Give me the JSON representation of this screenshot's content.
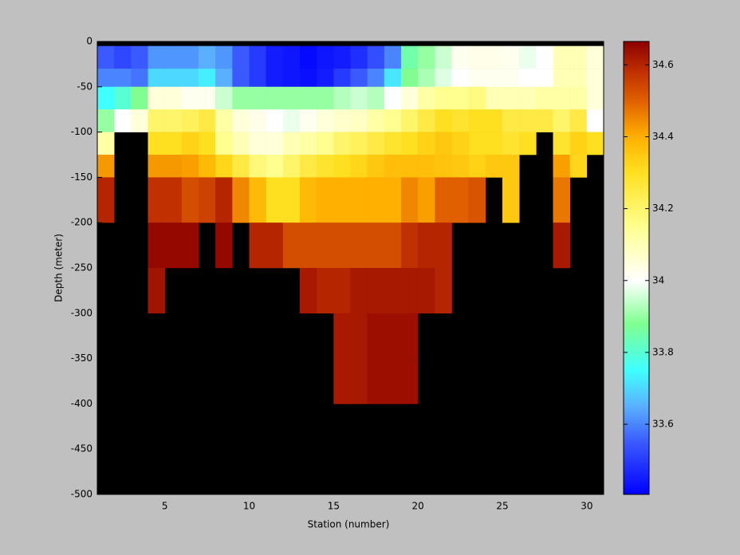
{
  "chart_data": {
    "type": "heatmap",
    "xlabel": "Station (number)",
    "ylabel": "Depth (meter)",
    "x_edges": [
      1,
      2,
      3,
      4,
      5,
      6,
      7,
      8,
      9,
      10,
      11,
      12,
      13,
      14,
      15,
      16,
      17,
      18,
      19,
      20,
      21,
      22,
      23,
      24,
      25,
      26,
      27,
      28,
      29,
      30,
      31
    ],
    "y_edges": [
      -5,
      -30,
      -50,
      -75,
      -100,
      -125,
      -150,
      -200,
      -250,
      -300,
      -350,
      -400
    ],
    "values": [
      [
        33.55,
        33.52,
        33.55,
        33.62,
        33.62,
        33.62,
        33.65,
        33.62,
        33.55,
        33.5,
        33.45,
        33.44,
        33.42,
        33.44,
        33.45,
        33.48,
        33.53,
        33.6,
        33.85,
        33.9,
        33.95,
        34.02,
        34.03,
        34.03,
        34.02,
        33.98,
        34.0,
        34.1,
        34.1,
        34.05
      ],
      [
        33.6,
        33.6,
        33.58,
        33.7,
        33.7,
        33.7,
        33.73,
        33.65,
        33.55,
        33.5,
        33.45,
        33.44,
        33.43,
        33.45,
        33.5,
        33.55,
        33.6,
        33.72,
        33.88,
        33.92,
        33.97,
        34.0,
        34.02,
        34.02,
        34.02,
        34.0,
        34.0,
        34.1,
        34.1,
        34.05
      ],
      [
        33.75,
        33.8,
        33.88,
        34.05,
        34.05,
        34.02,
        34.02,
        33.95,
        33.9,
        33.9,
        33.9,
        33.9,
        33.9,
        33.9,
        33.93,
        33.95,
        33.93,
        34.0,
        34.05,
        34.12,
        34.15,
        34.15,
        34.17,
        34.1,
        34.1,
        34.1,
        34.12,
        34.12,
        34.12,
        34.05
      ],
      [
        33.9,
        34.0,
        34.05,
        34.2,
        34.2,
        34.22,
        34.25,
        34.12,
        34.05,
        34.03,
        34.0,
        33.98,
        34.02,
        34.05,
        34.07,
        34.08,
        34.12,
        34.15,
        34.2,
        34.25,
        34.3,
        34.28,
        34.3,
        34.3,
        34.25,
        34.25,
        34.25,
        34.2,
        34.25,
        34.0
      ],
      [
        34.12,
        null,
        null,
        34.3,
        34.3,
        34.33,
        34.3,
        34.15,
        34.1,
        34.05,
        34.05,
        34.1,
        34.12,
        34.15,
        34.2,
        34.22,
        34.25,
        34.28,
        34.3,
        34.33,
        34.35,
        34.33,
        34.3,
        34.3,
        34.28,
        34.3,
        null,
        34.28,
        34.33,
        34.3
      ],
      [
        34.43,
        null,
        null,
        34.43,
        34.43,
        34.42,
        34.38,
        34.32,
        34.25,
        34.18,
        34.15,
        34.2,
        34.25,
        34.28,
        34.3,
        34.32,
        34.35,
        34.37,
        34.37,
        34.37,
        34.36,
        34.35,
        34.33,
        34.35,
        34.35,
        null,
        null,
        34.42,
        34.32,
        null
      ],
      [
        34.6,
        null,
        null,
        34.58,
        34.58,
        34.53,
        34.55,
        34.6,
        34.45,
        34.38,
        34.3,
        34.3,
        34.38,
        34.4,
        34.4,
        34.4,
        34.4,
        34.4,
        34.45,
        34.42,
        34.5,
        34.5,
        34.52,
        null,
        34.35,
        null,
        null,
        34.47,
        null,
        null
      ],
      [
        null,
        null,
        null,
        34.65,
        34.65,
        34.65,
        null,
        34.65,
        null,
        34.6,
        34.6,
        34.53,
        34.53,
        34.53,
        34.53,
        34.53,
        34.53,
        34.53,
        34.58,
        34.6,
        34.6,
        null,
        null,
        null,
        null,
        null,
        null,
        34.62,
        null,
        null
      ],
      [
        null,
        null,
        null,
        34.63,
        null,
        null,
        null,
        null,
        null,
        null,
        null,
        null,
        34.62,
        34.6,
        34.6,
        34.62,
        34.62,
        34.62,
        34.62,
        34.62,
        34.6,
        null,
        null,
        null,
        null,
        null,
        null,
        null,
        null,
        null
      ],
      [
        null,
        null,
        null,
        null,
        null,
        null,
        null,
        null,
        null,
        null,
        null,
        null,
        null,
        null,
        34.62,
        34.62,
        34.64,
        34.64,
        34.64,
        null,
        null,
        null,
        null,
        null,
        null,
        null,
        null,
        null,
        null,
        null
      ],
      [
        null,
        null,
        null,
        null,
        null,
        null,
        null,
        null,
        null,
        null,
        null,
        null,
        null,
        null,
        34.62,
        34.62,
        34.64,
        34.64,
        34.64,
        null,
        null,
        null,
        null,
        null,
        null,
        null,
        null,
        null,
        null,
        null
      ]
    ],
    "xlim": [
      1,
      31
    ],
    "xticks": [
      5,
      10,
      15,
      20,
      25,
      30
    ],
    "ylim": [
      -500,
      0
    ],
    "yticks": [
      0,
      -50,
      -100,
      -150,
      -200,
      -250,
      -300,
      -350,
      -400,
      -450,
      -500
    ],
    "background": "#000000",
    "clim": [
      33.405,
      34.665
    ],
    "cticks": [
      33.6,
      33.8,
      34,
      34.2,
      34.4,
      34.6
    ],
    "colormap": [
      {
        "value": 33.405,
        "color": "#0000ff"
      },
      {
        "value": 33.55,
        "color": "#3a5aff"
      },
      {
        "value": 33.65,
        "color": "#5ab0ff"
      },
      {
        "value": 33.75,
        "color": "#40ffff"
      },
      {
        "value": 33.88,
        "color": "#80ff90"
      },
      {
        "value": 34.0,
        "color": "#ffffff"
      },
      {
        "value": 34.15,
        "color": "#ffff90"
      },
      {
        "value": 34.3,
        "color": "#ffe020"
      },
      {
        "value": 34.4,
        "color": "#ffb000"
      },
      {
        "value": 34.5,
        "color": "#e06000"
      },
      {
        "value": 34.58,
        "color": "#c03000"
      },
      {
        "value": 34.665,
        "color": "#8b0000"
      }
    ]
  }
}
